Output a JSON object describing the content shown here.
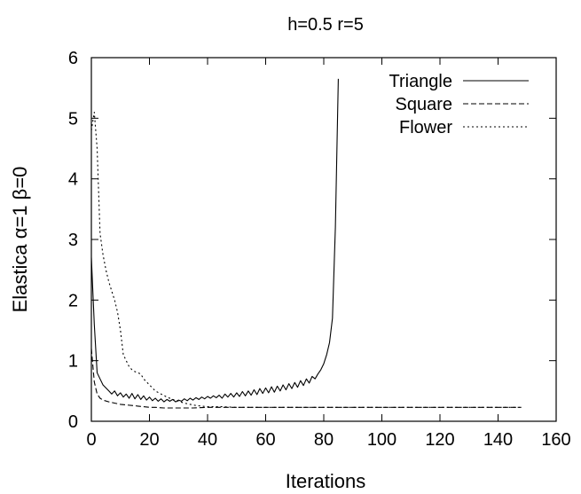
{
  "chart_data": {
    "type": "line",
    "title": "h=0.5 r=5",
    "xlabel": "Iterations",
    "ylabel": "Elastica α=1 β=0",
    "xlim": [
      0,
      160
    ],
    "ylim": [
      0,
      6
    ],
    "xticks": [
      0,
      20,
      40,
      60,
      80,
      100,
      120,
      140,
      160
    ],
    "yticks": [
      0,
      1,
      2,
      3,
      4,
      5,
      6
    ],
    "grid": false,
    "legend_position": "top-right",
    "series": [
      {
        "name": "Triangle",
        "line_style": "solid",
        "x": [
          0,
          1,
          2,
          3,
          4,
          5,
          6,
          7,
          8,
          9,
          10,
          11,
          12,
          13,
          14,
          15,
          16,
          17,
          18,
          19,
          20,
          21,
          22,
          23,
          24,
          25,
          26,
          27,
          28,
          29,
          30,
          31,
          32,
          33,
          34,
          35,
          36,
          37,
          38,
          39,
          40,
          41,
          42,
          43,
          44,
          45,
          46,
          47,
          48,
          49,
          50,
          51,
          52,
          53,
          54,
          55,
          56,
          57,
          58,
          59,
          60,
          61,
          62,
          63,
          64,
          65,
          66,
          67,
          68,
          69,
          70,
          71,
          72,
          73,
          74,
          75,
          76,
          77,
          78,
          79,
          80,
          81,
          82,
          83,
          84,
          85
        ],
        "y": [
          2.7,
          1.6,
          0.8,
          0.7,
          0.6,
          0.55,
          0.5,
          0.45,
          0.5,
          0.42,
          0.47,
          0.4,
          0.45,
          0.38,
          0.46,
          0.37,
          0.44,
          0.36,
          0.42,
          0.35,
          0.4,
          0.34,
          0.38,
          0.33,
          0.37,
          0.32,
          0.36,
          0.33,
          0.36,
          0.32,
          0.35,
          0.33,
          0.37,
          0.34,
          0.38,
          0.35,
          0.39,
          0.36,
          0.4,
          0.37,
          0.41,
          0.38,
          0.42,
          0.39,
          0.43,
          0.38,
          0.45,
          0.4,
          0.46,
          0.4,
          0.47,
          0.41,
          0.49,
          0.42,
          0.5,
          0.43,
          0.52,
          0.44,
          0.54,
          0.46,
          0.55,
          0.47,
          0.57,
          0.48,
          0.58,
          0.5,
          0.6,
          0.52,
          0.62,
          0.54,
          0.64,
          0.56,
          0.67,
          0.59,
          0.7,
          0.63,
          0.74,
          0.7,
          0.78,
          0.85,
          0.95,
          1.1,
          1.3,
          1.7,
          3.2,
          5.65
        ]
      },
      {
        "name": "Square",
        "line_style": "dashed",
        "x": [
          0,
          1,
          2,
          3,
          4,
          6,
          8,
          10,
          12,
          14,
          16,
          18,
          20,
          22,
          25,
          30,
          35,
          40,
          50,
          60,
          70,
          80,
          90,
          100,
          110,
          120,
          130,
          140,
          148
        ],
        "y": [
          1.2,
          0.65,
          0.45,
          0.38,
          0.35,
          0.32,
          0.3,
          0.28,
          0.27,
          0.26,
          0.25,
          0.24,
          0.23,
          0.23,
          0.22,
          0.22,
          0.22,
          0.23,
          0.23,
          0.23,
          0.23,
          0.23,
          0.23,
          0.23,
          0.23,
          0.23,
          0.23,
          0.23,
          0.23
        ]
      },
      {
        "name": "Flower",
        "line_style": "dotted",
        "x": [
          0,
          1,
          2,
          3,
          4,
          5,
          6,
          7,
          8,
          9,
          10,
          11,
          12,
          13,
          14,
          15,
          16,
          17,
          18,
          19,
          20,
          21,
          22,
          24,
          26,
          28,
          30,
          32,
          34,
          36,
          38,
          40,
          45,
          50,
          60,
          70,
          80,
          90,
          100,
          110,
          120,
          130,
          140,
          148
        ],
        "y": [
          4.8,
          5.1,
          4.5,
          3.1,
          2.75,
          2.5,
          2.3,
          2.15,
          2.0,
          1.8,
          1.5,
          1.1,
          1.0,
          0.9,
          0.85,
          0.82,
          0.8,
          0.78,
          0.7,
          0.65,
          0.6,
          0.55,
          0.5,
          0.45,
          0.4,
          0.36,
          0.33,
          0.3,
          0.28,
          0.26,
          0.25,
          0.24,
          0.24,
          0.23,
          0.23,
          0.23,
          0.23,
          0.23,
          0.23,
          0.23,
          0.23,
          0.23,
          0.23,
          0.23
        ]
      }
    ]
  }
}
